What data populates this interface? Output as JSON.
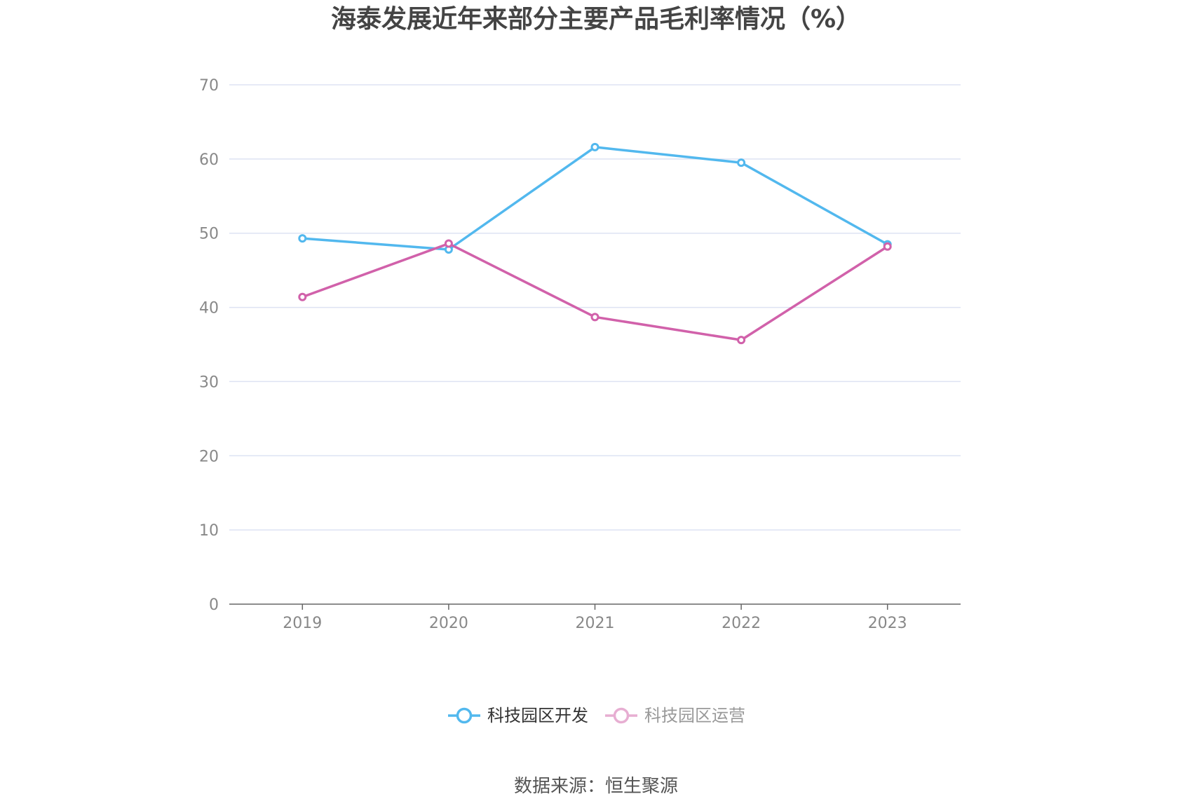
{
  "title": "海泰发展近年来部分主要产品毛利率情况（%）",
  "source_label": "数据来源：恒生聚源",
  "colors": {
    "series_a": "#52b8ee",
    "series_b": "#d161aa",
    "grid": "#dde3f3",
    "axis": "#666666",
    "legend_active_text": "#333333",
    "legend_inactive_text": "#999999",
    "legend_inactive_icon": "#e7aed2"
  },
  "chart_data": {
    "type": "line",
    "categories": [
      "2019",
      "2020",
      "2021",
      "2022",
      "2023"
    ],
    "ylim": [
      0,
      70
    ],
    "yticks": [
      0,
      10,
      20,
      30,
      40,
      50,
      60,
      70
    ],
    "grid": true,
    "legend_position": "bottom-center",
    "series": [
      {
        "name": "科技园区开发",
        "values": [
          49.3,
          47.8,
          61.6,
          59.5,
          48.5
        ],
        "color": "#52b8ee",
        "active": true
      },
      {
        "name": "科技园区运营",
        "values": [
          41.4,
          48.6,
          38.7,
          35.6,
          48.2
        ],
        "color": "#d161aa",
        "active": false
      }
    ]
  }
}
